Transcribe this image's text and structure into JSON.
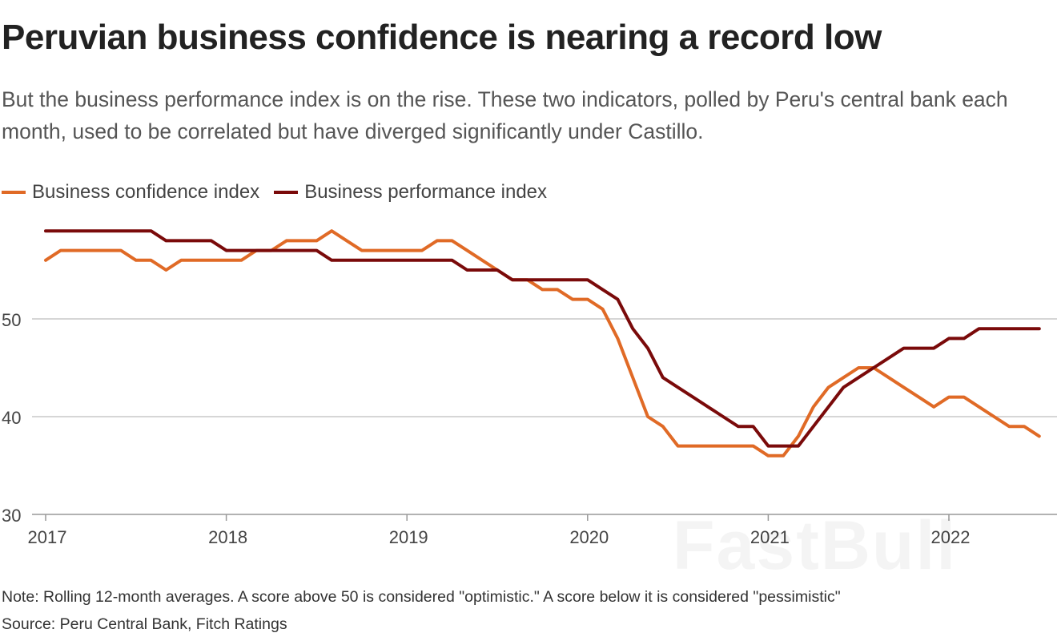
{
  "title": "Peruvian business confidence is nearing a record low",
  "subtitle": "But the business performance index is on the rise. These two indicators, polled by Peru's central bank each month, used to be correlated but have diverged significantly under Castillo.",
  "note": "Note: Rolling 12-month averages. A score above 50 is considered \"optimistic.\" A score below it is considered \"pessimistic\"",
  "source": "Source: Peru Central Bank, Fitch Ratings",
  "watermark": "FastBull",
  "chart_data": {
    "type": "line",
    "title": "",
    "xlabel": "",
    "ylabel": "",
    "x_start": "2017-01",
    "x_frequency": "monthly",
    "x_ticks": [
      "2017",
      "2018",
      "2019",
      "2020",
      "2021",
      "2022"
    ],
    "y_ticks": [
      30,
      40,
      50
    ],
    "ylim": [
      30,
      60
    ],
    "grid": "horizontal",
    "legend": "top-left",
    "series": [
      {
        "name": "Business confidence index",
        "color": "#e06a26",
        "values": [
          56,
          57,
          57,
          57,
          57,
          57,
          56,
          56,
          55,
          56,
          56,
          56,
          56,
          56,
          57,
          57,
          58,
          58,
          58,
          59,
          58,
          57,
          57,
          57,
          57,
          57,
          58,
          58,
          57,
          56,
          55,
          54,
          54,
          53,
          53,
          52,
          52,
          51,
          48,
          44,
          40,
          39,
          37,
          37,
          37,
          37,
          37,
          37,
          36,
          36,
          38,
          41,
          43,
          44,
          45,
          45,
          44,
          43,
          42,
          41,
          42,
          42,
          41,
          40,
          39,
          39,
          38
        ]
      },
      {
        "name": "Business performance index",
        "color": "#7a0a0a",
        "values": [
          59,
          59,
          59,
          59,
          59,
          59,
          59,
          59,
          58,
          58,
          58,
          58,
          57,
          57,
          57,
          57,
          57,
          57,
          57,
          56,
          56,
          56,
          56,
          56,
          56,
          56,
          56,
          56,
          55,
          55,
          55,
          54,
          54,
          54,
          54,
          54,
          54,
          53,
          52,
          49,
          47,
          44,
          43,
          42,
          41,
          40,
          39,
          39,
          37,
          37,
          37,
          39,
          41,
          43,
          44,
          45,
          46,
          47,
          47,
          47,
          48,
          48,
          49,
          49,
          49,
          49,
          49
        ]
      }
    ]
  }
}
